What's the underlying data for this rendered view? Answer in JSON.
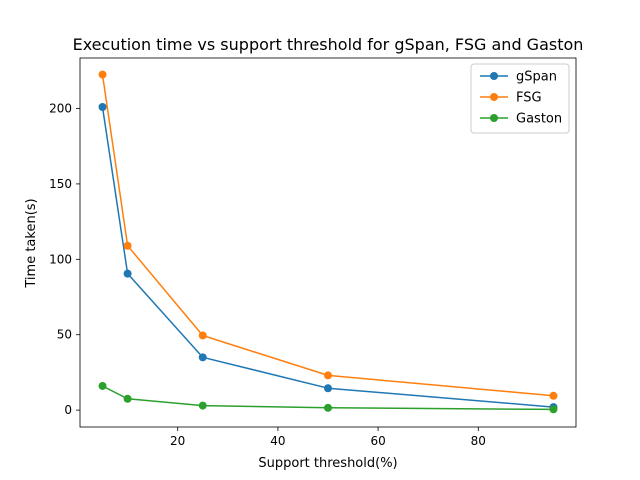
{
  "chart_data": {
    "type": "line",
    "title": "Execution time vs support threshold for gSpan, FSG and Gaston",
    "xlabel": "Support threshold(%)",
    "ylabel": "Time taken(s)",
    "xlim": [
      0.5,
      99.5
    ],
    "ylim": [
      -11.2,
      233.5
    ],
    "xticks": [
      20,
      40,
      60,
      80
    ],
    "yticks": [
      0,
      50,
      100,
      150,
      200
    ],
    "grid": false,
    "legend_position": "top-right",
    "x": [
      5,
      10,
      25,
      50,
      95
    ],
    "series": [
      {
        "name": "gSpan",
        "color": "#1f77b4",
        "values": [
          201,
          90.5,
          35,
          14.5,
          2
        ]
      },
      {
        "name": "FSG",
        "color": "#ff7f0e",
        "values": [
          222.5,
          109,
          49.5,
          23,
          9.5
        ]
      },
      {
        "name": "Gaston",
        "color": "#2ca02c",
        "values": [
          16,
          7.5,
          3,
          1.5,
          0.5
        ]
      }
    ]
  }
}
